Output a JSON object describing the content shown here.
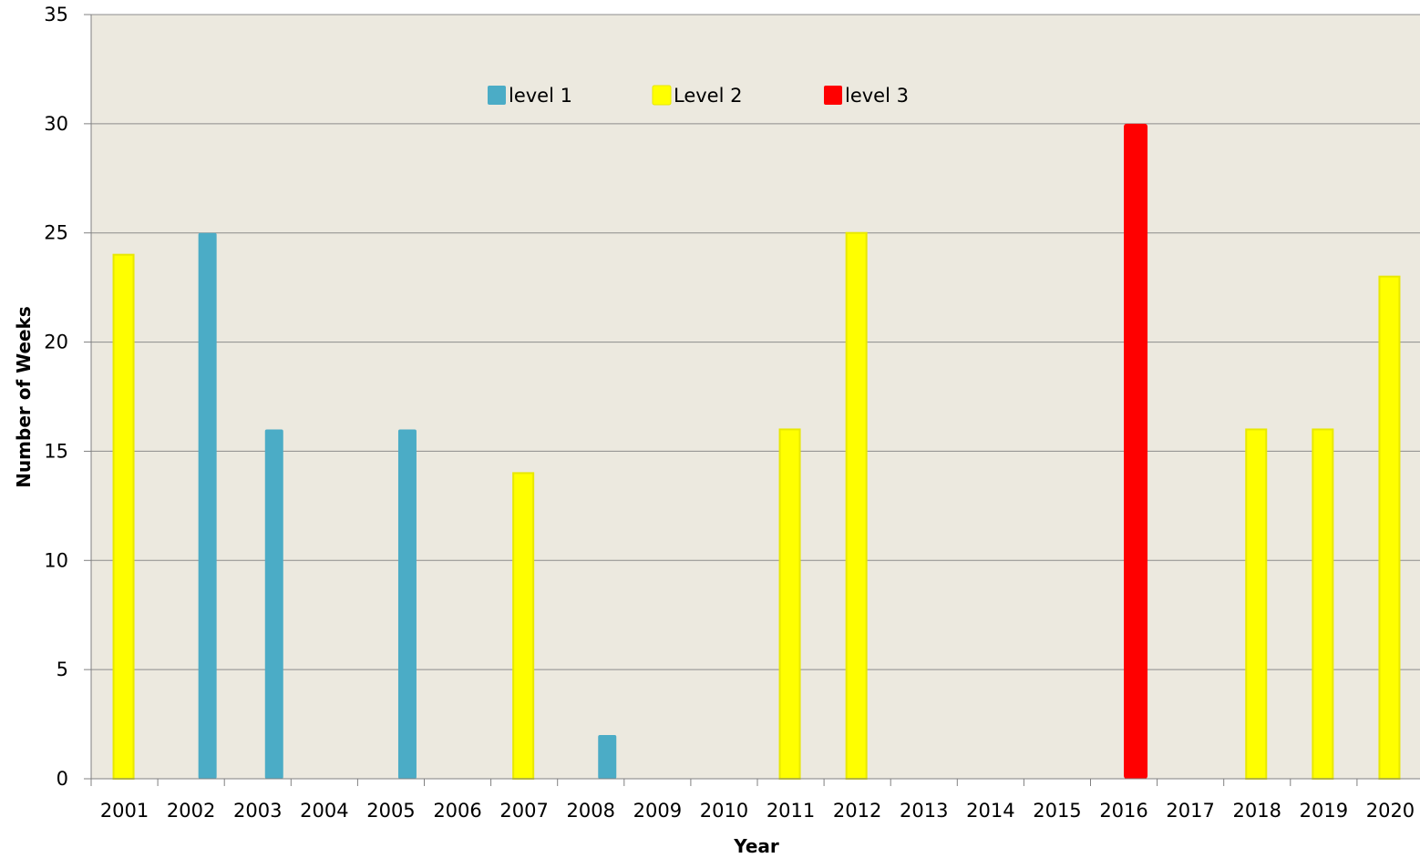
{
  "chart_data": {
    "type": "bar",
    "xlabel": "Year",
    "ylabel": "Number of Weeks",
    "ylim": [
      0,
      35
    ],
    "yticks": [
      0,
      5,
      10,
      15,
      20,
      25,
      30,
      35
    ],
    "grid": true,
    "legend_position": "top-center",
    "categories": [
      "2001",
      "2002",
      "2003",
      "2004",
      "2005",
      "2006",
      "2007",
      "2008",
      "2009",
      "2010",
      "2011",
      "2012",
      "2013",
      "2014",
      "2015",
      "2016",
      "2017",
      "2018",
      "2019",
      "2020"
    ],
    "series": [
      {
        "name": "level 1",
        "color": "#4BACC6",
        "values": [
          null,
          25,
          16,
          null,
          16,
          null,
          null,
          2,
          null,
          null,
          null,
          null,
          null,
          null,
          null,
          null,
          null,
          null,
          null,
          null
        ]
      },
      {
        "name": "Level 2",
        "color": "#FFFF00",
        "values": [
          24,
          null,
          null,
          null,
          null,
          null,
          14,
          null,
          null,
          null,
          16,
          25,
          null,
          null,
          null,
          null,
          null,
          16,
          16,
          23
        ]
      },
      {
        "name": "level 3",
        "color": "#FF0000",
        "values": [
          null,
          null,
          null,
          null,
          null,
          null,
          null,
          null,
          null,
          null,
          null,
          null,
          null,
          null,
          null,
          30,
          null,
          null,
          null,
          null
        ]
      }
    ],
    "plot_background": "#ECE9DF",
    "gridline_color": "#8C8C8C"
  }
}
